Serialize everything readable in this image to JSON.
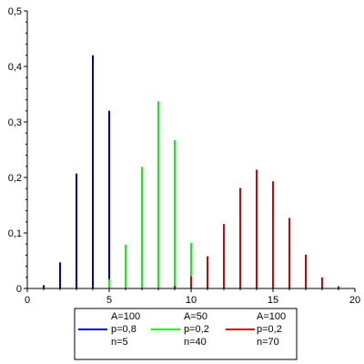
{
  "chart_data": {
    "type": "bar",
    "title": "",
    "xlabel": "",
    "ylabel": "",
    "xlim": [
      0,
      20
    ],
    "ylim": [
      0,
      0.5
    ],
    "x_ticks": [
      0,
      5,
      10,
      15,
      20
    ],
    "x_tick_labels": [
      "0",
      "5",
      "10",
      "15",
      "20"
    ],
    "y_ticks": [
      0,
      0.1,
      0.2,
      0.3,
      0.4,
      0.5
    ],
    "y_tick_labels": [
      "0",
      "0,1",
      "0,2",
      "0,3",
      "0,4",
      "0,5"
    ],
    "grid": false,
    "legend_position": "bottom",
    "series": [
      {
        "color": "#0000cc",
        "legend_lines": [
          "A=100",
          "p=0,8",
          "n=5"
        ],
        "x": [
          1,
          2,
          3,
          4,
          5
        ],
        "values": [
          0.006,
          0.047,
          0.207,
          0.42,
          0.32
        ]
      },
      {
        "color": "#00ff00",
        "legend_lines": [
          "A=50",
          "p=0,2",
          "n=40"
        ],
        "x": [
          5,
          6,
          7,
          8,
          9,
          10
        ],
        "values": [
          0.017,
          0.079,
          0.219,
          0.337,
          0.267,
          0.082
        ]
      },
      {
        "color": "#dd0000",
        "legend_lines": [
          "A=100",
          "p=0,2",
          "n=70"
        ],
        "x": [
          9,
          10,
          11,
          12,
          13,
          14,
          15,
          16,
          17,
          18,
          19
        ],
        "values": [
          0.005,
          0.022,
          0.058,
          0.116,
          0.181,
          0.214,
          0.193,
          0.127,
          0.061,
          0.02,
          0.004
        ]
      }
    ]
  }
}
